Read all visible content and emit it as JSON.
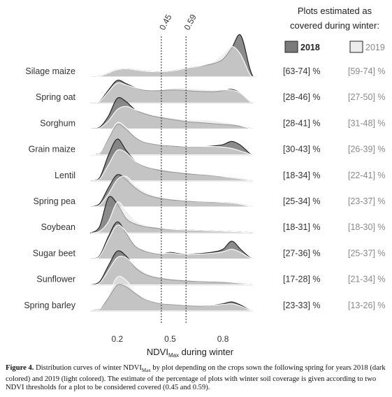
{
  "chart_data": {
    "type": "area",
    "legend_title": [
      "Plots estimated as",
      "covered during winter:"
    ],
    "legend": [
      {
        "name": "2018",
        "color": "#7a7a7a"
      },
      {
        "name": "2019",
        "color": "#ececec"
      }
    ],
    "thresholds": [
      {
        "value": 0.45,
        "label": "0.45"
      },
      {
        "value": 0.59,
        "label": "0.59"
      }
    ],
    "xlabel_main": "NDVI",
    "xlabel_sub": "Max",
    "xlabel_suffix": " during winter",
    "xlim": [
      0.05,
      0.97
    ],
    "xticks": [
      {
        "value": 0.2,
        "label": "0.2"
      },
      {
        "value": 0.5,
        "label": "0.5"
      },
      {
        "value": 0.8,
        "label": "0.8"
      }
    ],
    "x": [
      0.05,
      0.1,
      0.15,
      0.2,
      0.25,
      0.3,
      0.35,
      0.4,
      0.45,
      0.5,
      0.55,
      0.6,
      0.65,
      0.7,
      0.75,
      0.8,
      0.85,
      0.9,
      0.95,
      0.97
    ],
    "crops": [
      {
        "name": "Silage maize",
        "pct_2018": "[63-74] %",
        "pct_2019": "[59-74] %",
        "d2018": [
          0,
          0.02,
          0.12,
          0.22,
          0.25,
          0.22,
          0.18,
          0.16,
          0.16,
          0.18,
          0.22,
          0.28,
          0.32,
          0.36,
          0.42,
          0.55,
          0.9,
          1.3,
          0.3,
          0
        ],
        "d2019": [
          0,
          0.02,
          0.12,
          0.22,
          0.25,
          0.22,
          0.18,
          0.16,
          0.16,
          0.18,
          0.22,
          0.28,
          0.32,
          0.38,
          0.5,
          0.72,
          0.95,
          0.7,
          0.1,
          0
        ]
      },
      {
        "name": "Spring oat",
        "pct_2018": "[28-46] %",
        "pct_2019": "[27-50] %",
        "d2018": [
          0,
          0.05,
          0.4,
          0.7,
          0.6,
          0.48,
          0.4,
          0.38,
          0.38,
          0.4,
          0.4,
          0.38,
          0.36,
          0.35,
          0.35,
          0.38,
          0.42,
          0.3,
          0.05,
          0
        ],
        "d2019": [
          0,
          0.05,
          0.35,
          0.62,
          0.56,
          0.48,
          0.42,
          0.4,
          0.42,
          0.46,
          0.48,
          0.46,
          0.44,
          0.42,
          0.4,
          0.4,
          0.4,
          0.3,
          0.05,
          0
        ]
      },
      {
        "name": "Sorghum",
        "pct_2018": "[28-41] %",
        "pct_2019": "[31-48] %",
        "d2018": [
          0,
          0.05,
          0.4,
          0.95,
          0.85,
          0.6,
          0.48,
          0.4,
          0.35,
          0.3,
          0.26,
          0.22,
          0.2,
          0.18,
          0.16,
          0.14,
          0.12,
          0.08,
          0.02,
          0
        ],
        "d2019": [
          0,
          0.03,
          0.25,
          0.6,
          0.7,
          0.6,
          0.52,
          0.45,
          0.4,
          0.36,
          0.32,
          0.3,
          0.28,
          0.28,
          0.26,
          0.22,
          0.18,
          0.1,
          0.02,
          0
        ]
      },
      {
        "name": "Grain maize",
        "pct_2018": "[30-43] %",
        "pct_2019": "[26-39] %",
        "d2018": [
          0,
          0.05,
          0.5,
          0.95,
          0.8,
          0.55,
          0.4,
          0.34,
          0.3,
          0.28,
          0.26,
          0.25,
          0.25,
          0.26,
          0.28,
          0.32,
          0.42,
          0.3,
          0.05,
          0
        ],
        "d2019": [
          0,
          0.05,
          0.55,
          1.0,
          0.85,
          0.58,
          0.42,
          0.36,
          0.32,
          0.3,
          0.28,
          0.26,
          0.26,
          0.26,
          0.26,
          0.24,
          0.2,
          0.12,
          0.03,
          0
        ]
      },
      {
        "name": "Lentil",
        "pct_2018": "[18-34] %",
        "pct_2019": "[22-41] %",
        "d2018": [
          0,
          0.1,
          0.8,
          1.3,
          0.95,
          0.62,
          0.46,
          0.38,
          0.32,
          0.28,
          0.25,
          0.22,
          0.2,
          0.18,
          0.16,
          0.13,
          0.1,
          0.06,
          0.02,
          0
        ],
        "d2019": [
          0,
          0.06,
          0.5,
          0.95,
          0.88,
          0.62,
          0.48,
          0.4,
          0.36,
          0.32,
          0.28,
          0.25,
          0.22,
          0.2,
          0.17,
          0.14,
          0.1,
          0.06,
          0.02,
          0
        ]
      },
      {
        "name": "Spring pea",
        "pct_2018": "[25-34] %",
        "pct_2019": "[23-37] %",
        "d2018": [
          0,
          0.1,
          0.6,
          1.0,
          0.85,
          0.6,
          0.42,
          0.32,
          0.26,
          0.22,
          0.2,
          0.18,
          0.17,
          0.16,
          0.15,
          0.14,
          0.12,
          0.08,
          0.02,
          0
        ],
        "d2019": [
          0,
          0.06,
          0.4,
          0.85,
          0.95,
          0.7,
          0.5,
          0.38,
          0.3,
          0.26,
          0.22,
          0.2,
          0.18,
          0.17,
          0.16,
          0.14,
          0.12,
          0.08,
          0.02,
          0
        ]
      },
      {
        "name": "Soybean",
        "pct_2018": "[18-31] %",
        "pct_2019": "[18-30] %",
        "d2018": [
          0,
          0.2,
          1.1,
          0.9,
          0.45,
          0.28,
          0.2,
          0.16,
          0.13,
          0.11,
          0.1,
          0.09,
          0.08,
          0.07,
          0.06,
          0.05,
          0.04,
          0.03,
          0.01,
          0
        ],
        "d2019": [
          0,
          0.05,
          0.35,
          0.95,
          0.7,
          0.4,
          0.26,
          0.2,
          0.15,
          0.12,
          0.1,
          0.09,
          0.08,
          0.07,
          0.06,
          0.05,
          0.04,
          0.03,
          0.01,
          0
        ]
      },
      {
        "name": "Sugar beet",
        "pct_2018": "[27-36] %",
        "pct_2019": "[25-37] %",
        "d2018": [
          0,
          0.1,
          0.7,
          1.15,
          0.8,
          0.4,
          0.25,
          0.18,
          0.15,
          0.2,
          0.16,
          0.14,
          0.16,
          0.18,
          0.22,
          0.3,
          0.55,
          0.3,
          0.05,
          0
        ],
        "d2019": [
          0,
          0.08,
          0.6,
          1.05,
          0.85,
          0.45,
          0.28,
          0.2,
          0.16,
          0.18,
          0.15,
          0.14,
          0.15,
          0.16,
          0.18,
          0.22,
          0.3,
          0.2,
          0.04,
          0
        ]
      },
      {
        "name": "Sunflower",
        "pct_2018": "[17-28] %",
        "pct_2019": "[21-34] %",
        "d2018": [
          0,
          0.1,
          0.6,
          1.05,
          0.9,
          0.55,
          0.35,
          0.25,
          0.2,
          0.16,
          0.14,
          0.12,
          0.11,
          0.1,
          0.09,
          0.08,
          0.07,
          0.05,
          0.01,
          0
        ],
        "d2019": [
          0,
          0.06,
          0.45,
          0.85,
          0.85,
          0.6,
          0.42,
          0.3,
          0.24,
          0.2,
          0.17,
          0.15,
          0.13,
          0.12,
          0.11,
          0.1,
          0.08,
          0.05,
          0.01,
          0
        ]
      },
      {
        "name": "Spring barley",
        "pct_2018": "[23-33] %",
        "pct_2019": "[13-26] %",
        "d2018": [
          0,
          0.06,
          0.4,
          0.8,
          0.75,
          0.55,
          0.38,
          0.28,
          0.22,
          0.2,
          0.18,
          0.16,
          0.15,
          0.16,
          0.18,
          0.22,
          0.28,
          0.18,
          0.03,
          0
        ],
        "d2019": [
          0,
          0.06,
          0.5,
          1.05,
          0.95,
          0.62,
          0.4,
          0.3,
          0.24,
          0.22,
          0.2,
          0.18,
          0.17,
          0.17,
          0.18,
          0.2,
          0.22,
          0.15,
          0.03,
          0
        ]
      }
    ]
  },
  "caption": {
    "label": "Figure 4.",
    "text_1": " Distribution curves of winter NDVI",
    "sub": "Max",
    "text_2": " by plot depending on the crops sown the following spring for years 2018 (dark colored) and 2019 (light colored). The estimate of the percentage of plots with winter soil coverage is given according to two NDVI thresholds for a plot to be considered covered (0.45 and 0.59)."
  }
}
